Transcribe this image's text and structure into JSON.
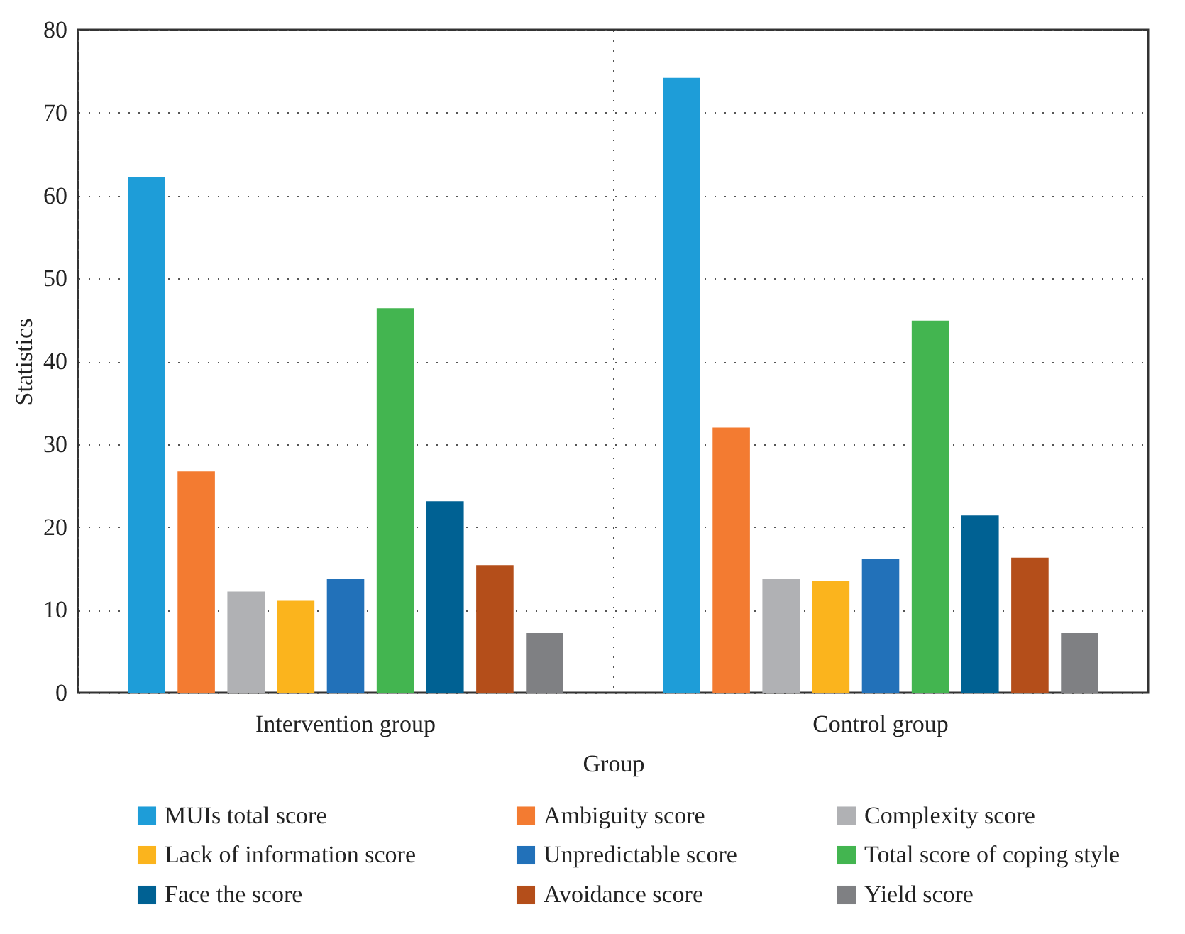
{
  "chart_data": {
    "type": "bar",
    "xlabel": "Group",
    "ylabel": "Statistics",
    "categories": [
      "Intervention group",
      "Control group"
    ],
    "series": [
      {
        "name": "MUIs total score",
        "color": "#1e9dd8",
        "values": [
          62.2,
          74.2
        ]
      },
      {
        "name": "Ambiguity score",
        "color": "#f37b31",
        "values": [
          26.7,
          32.0
        ]
      },
      {
        "name": "Complexity score",
        "color": "#b0b1b4",
        "values": [
          12.2,
          13.7
        ]
      },
      {
        "name": "Lack of information score",
        "color": "#fbb41d",
        "values": [
          11.1,
          13.5
        ]
      },
      {
        "name": "Unpredictable score",
        "color": "#2271b9",
        "values": [
          13.7,
          16.1
        ]
      },
      {
        "name": "Total score of coping style",
        "color": "#43b550",
        "values": [
          46.4,
          44.9
        ]
      },
      {
        "name": "Face the score",
        "color": "#006193",
        "values": [
          23.1,
          21.4
        ]
      },
      {
        "name": "Avoidance score",
        "color": "#b44e1a",
        "values": [
          15.4,
          16.3
        ]
      },
      {
        "name": "Yield score",
        "color": "#7f8083",
        "values": [
          7.2,
          7.2
        ]
      }
    ],
    "ylim": [
      0,
      80
    ],
    "yticks": [
      0,
      10,
      20,
      30,
      40,
      50,
      60,
      70,
      80
    ],
    "grid": true,
    "legend": "bottom"
  }
}
